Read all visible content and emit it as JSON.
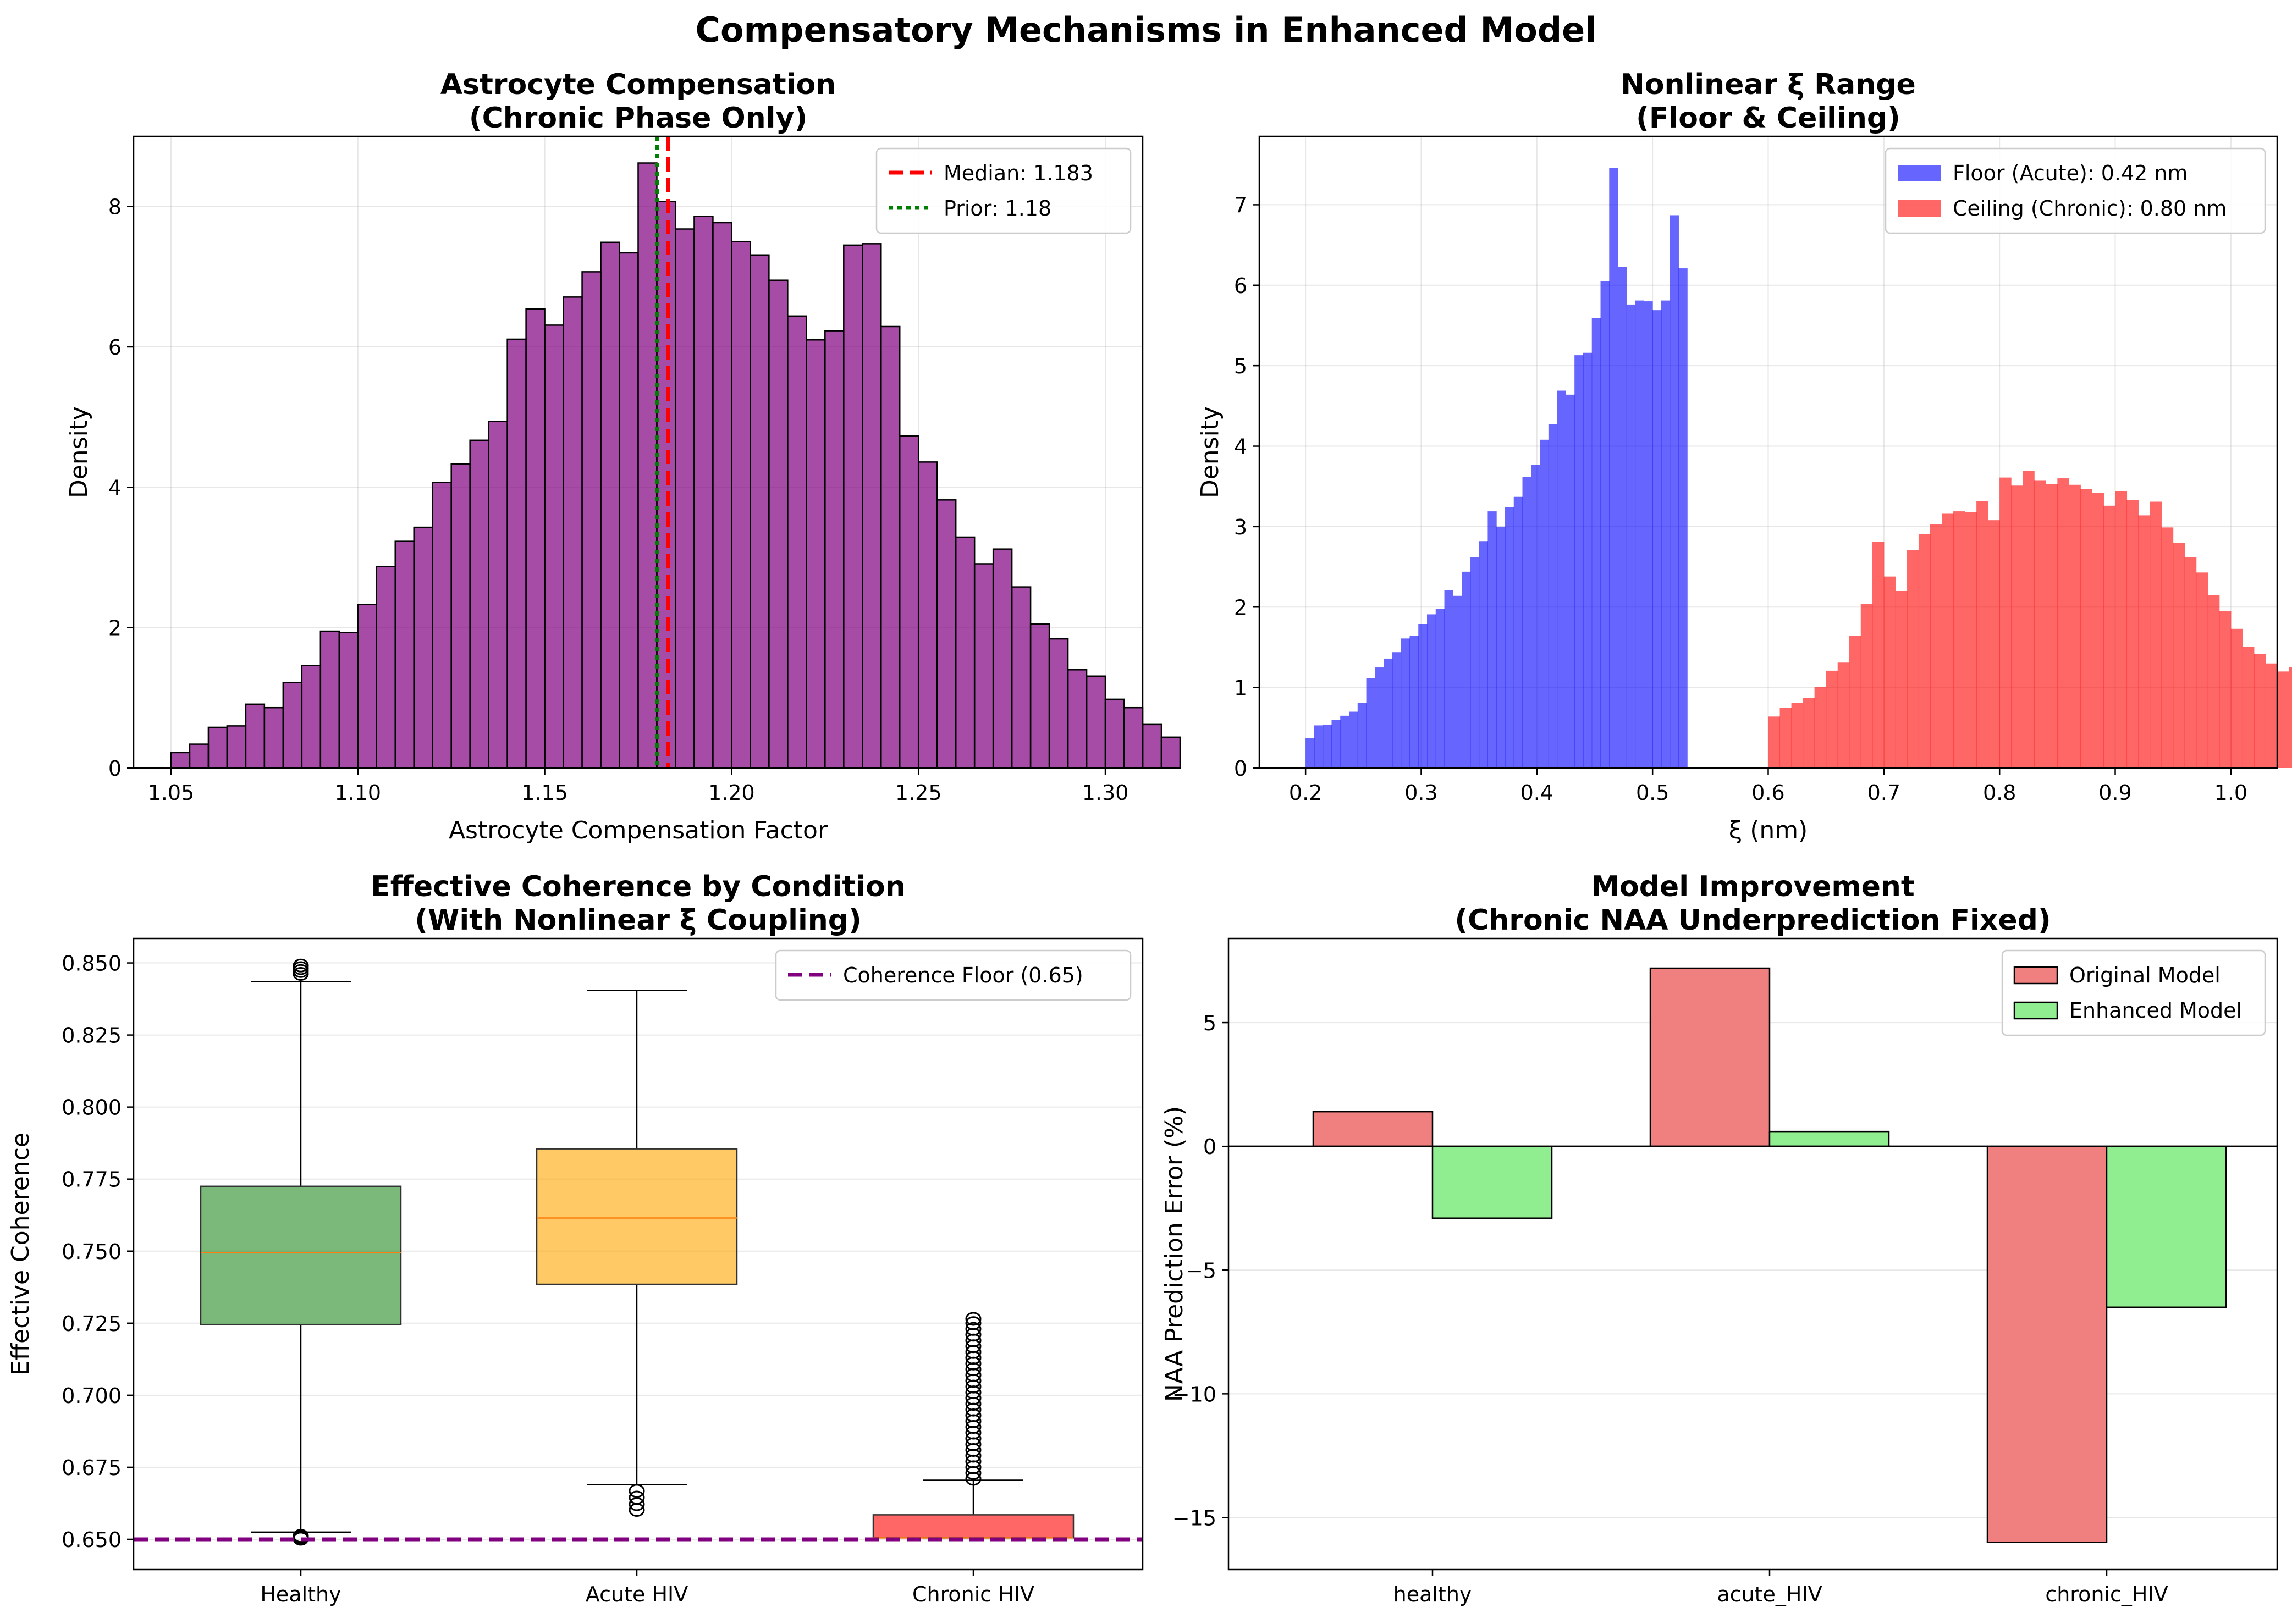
{
  "figure": {
    "title": "Compensatory Mechanisms in Enhanced Model"
  },
  "chart_data": [
    {
      "type": "histogram",
      "title": "Astrocyte Compensation\n(Chronic Phase Only)",
      "xlabel": "Astrocyte Compensation Factor",
      "ylabel": "Density",
      "xlim": [
        1.04,
        1.31
      ],
      "ylim": [
        0,
        9.0
      ],
      "xticks": [
        1.05,
        1.1,
        1.15,
        1.2,
        1.25,
        1.3
      ],
      "xtick_labels": [
        "1.05",
        "1.10",
        "1.15",
        "1.20",
        "1.25",
        "1.30"
      ],
      "yticks": [
        0,
        2,
        4,
        6,
        8
      ],
      "ytick_labels": [
        "0",
        "2",
        "4",
        "6",
        "8"
      ],
      "grid": true,
      "legend_position": "top-right",
      "bin_start": 1.05,
      "bin_width": 0.005,
      "color": "#800080",
      "values": [
        0.22,
        0.34,
        0.58,
        0.6,
        0.91,
        0.86,
        1.22,
        1.46,
        1.95,
        1.93,
        2.33,
        2.87,
        3.23,
        3.43,
        4.07,
        4.33,
        4.67,
        4.94,
        6.11,
        6.54,
        6.31,
        6.71,
        7.07,
        7.49,
        7.34,
        8.62,
        8.07,
        7.68,
        7.86,
        7.77,
        7.5,
        7.31,
        6.95,
        6.44,
        6.1,
        6.23,
        7.45,
        7.47,
        6.29,
        4.73,
        4.36,
        3.82,
        3.29,
        2.91,
        3.12,
        2.58,
        2.05,
        1.84,
        1.4,
        1.31,
        0.98,
        0.86,
        0.62,
        0.44
      ],
      "lines": [
        {
          "label": "Median: 1.183",
          "x": 1.183,
          "color": "#ff0000",
          "style": "dashed"
        },
        {
          "label": "Prior: 1.18",
          "x": 1.18,
          "color": "#008000",
          "style": "dotted"
        }
      ]
    },
    {
      "type": "histogram",
      "title": "Nonlinear ξ Range\n(Floor & Ceiling)",
      "xlabel": "ξ (nm)",
      "ylabel": "Density",
      "xlim": [
        0.16,
        1.04
      ],
      "ylim": [
        0,
        7.85
      ],
      "xticks": [
        0.2,
        0.3,
        0.4,
        0.5,
        0.6,
        0.7,
        0.8,
        0.9,
        1.0
      ],
      "xtick_labels": [
        "0.2",
        "0.3",
        "0.4",
        "0.5",
        "0.6",
        "0.7",
        "0.8",
        "0.9",
        "1.0"
      ],
      "yticks": [
        0,
        1,
        2,
        3,
        4,
        5,
        6,
        7
      ],
      "ytick_labels": [
        "0",
        "1",
        "2",
        "3",
        "4",
        "5",
        "6",
        "7"
      ],
      "grid": true,
      "legend_position": "top-right",
      "series": [
        {
          "name": "Floor (Acute): 0.42 nm",
          "color": "#0000ff",
          "bin_start": 0.2,
          "bin_width": 0.0075,
          "values": [
            0.37,
            0.53,
            0.54,
            0.6,
            0.65,
            0.7,
            0.81,
            1.12,
            1.25,
            1.36,
            1.44,
            1.61,
            1.64,
            1.79,
            1.91,
            1.98,
            2.21,
            2.14,
            2.44,
            2.62,
            2.82,
            3.19,
            3.0,
            3.24,
            3.37,
            3.62,
            3.77,
            4.08,
            4.27,
            4.69,
            4.64,
            5.13,
            5.16,
            5.59,
            6.05,
            7.46,
            6.23,
            5.76,
            5.81,
            5.8,
            5.69,
            5.81,
            6.87,
            6.21
          ]
        },
        {
          "name": "Ceiling (Chronic): 0.80 nm",
          "color": "#ff0000",
          "bin_start": 0.6,
          "bin_width": 0.01,
          "values": [
            0.64,
            0.75,
            0.81,
            0.87,
            1.01,
            1.21,
            1.31,
            1.64,
            2.04,
            2.81,
            2.38,
            2.2,
            2.71,
            2.91,
            3.03,
            3.16,
            3.19,
            3.18,
            3.32,
            3.08,
            3.61,
            3.51,
            3.69,
            3.57,
            3.53,
            3.6,
            3.52,
            3.47,
            3.42,
            3.26,
            3.44,
            3.33,
            3.14,
            3.31,
            2.99,
            2.8,
            2.62,
            2.43,
            2.15,
            1.95,
            1.73,
            1.51,
            1.42,
            1.3,
            1.2,
            1.25
          ]
        }
      ]
    },
    {
      "type": "box",
      "title": "Effective Coherence by Condition\n(With Nonlinear ξ Coupling)",
      "xlabel": "",
      "ylabel": "Effective Coherence",
      "ylim": [
        0.6395,
        0.8585
      ],
      "categories": [
        "Healthy",
        "Acute HIV",
        "Chronic HIV"
      ],
      "yticks": [
        0.65,
        0.675,
        0.7,
        0.725,
        0.75,
        0.775,
        0.8,
        0.825,
        0.85
      ],
      "ytick_labels": [
        "0.650",
        "0.675",
        "0.700",
        "0.725",
        "0.750",
        "0.775",
        "0.800",
        "0.825",
        "0.850"
      ],
      "grid": true,
      "legend_position": "top-right",
      "boxes": [
        {
          "name": "Healthy",
          "color": "#228b22",
          "q1": 0.7245,
          "median": 0.7495,
          "q3": 0.7725,
          "whislo": 0.6525,
          "whishi": 0.8435,
          "fliers": [
            0.6502,
            0.6507,
            0.6512,
            0.8462,
            0.8472,
            0.8482,
            0.8491
          ]
        },
        {
          "name": "Acute HIV",
          "color": "#ffa500",
          "q1": 0.7385,
          "median": 0.7615,
          "q3": 0.7855,
          "whislo": 0.669,
          "whishi": 0.8405,
          "fliers": [
            0.6602,
            0.6622,
            0.6645,
            0.6668
          ]
        },
        {
          "name": "Chronic HIV",
          "color": "#ff0000",
          "q1": 0.6505,
          "median": 0.6505,
          "q3": 0.6585,
          "whislo": 0.6505,
          "whishi": 0.6705,
          "fliers": [
            0.671,
            0.673,
            0.675,
            0.677,
            0.679,
            0.681,
            0.683,
            0.685,
            0.687,
            0.689,
            0.691,
            0.693,
            0.695,
            0.697,
            0.699,
            0.701,
            0.703,
            0.705,
            0.707,
            0.709,
            0.711,
            0.713,
            0.715,
            0.717,
            0.719,
            0.721,
            0.723,
            0.725,
            0.7265
          ]
        }
      ],
      "lines": [
        {
          "label": "Coherence Floor (0.65)",
          "y": 0.65,
          "color": "#800080",
          "style": "dashed"
        }
      ]
    },
    {
      "type": "bar",
      "title": "Model Improvement\n(Chronic NAA Underprediction Fixed)",
      "xlabel": "",
      "ylabel": "NAA Prediction Error (%)",
      "ylim": [
        -17.1,
        8.4
      ],
      "categories": [
        "healthy",
        "acute_HIV",
        "chronic_HIV"
      ],
      "yticks": [
        -15,
        -10,
        -5,
        0,
        5
      ],
      "ytick_labels": [
        "−15",
        "−10",
        "−5",
        "0",
        "5"
      ],
      "grid": true,
      "legend_position": "top-right",
      "series": [
        {
          "name": "Original Model",
          "color": "#f08080",
          "values": [
            1.4,
            7.2,
            -16.0
          ]
        },
        {
          "name": "Enhanced Model",
          "color": "#90ee90",
          "values": [
            -2.9,
            0.6,
            -6.5
          ]
        }
      ]
    }
  ]
}
